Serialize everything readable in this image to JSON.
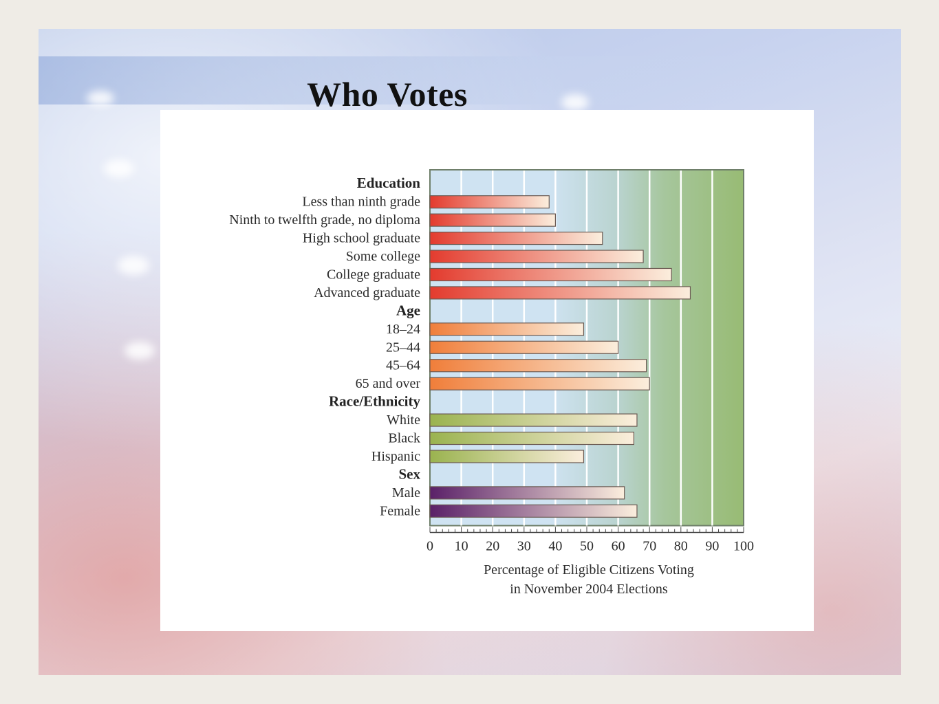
{
  "slide": {
    "title": "Who Votes"
  },
  "chart_data": {
    "type": "bar",
    "orientation": "horizontal",
    "groups": [
      {
        "name": "Education",
        "color": "#e33b2e",
        "items": [
          {
            "label": "Less than ninth grade",
            "value": 38
          },
          {
            "label": "Ninth to twelfth grade, no diploma",
            "value": 40
          },
          {
            "label": "High school graduate",
            "value": 55
          },
          {
            "label": "Some college",
            "value": 68
          },
          {
            "label": "College graduate",
            "value": 77
          },
          {
            "label": "Advanced graduate",
            "value": 83
          }
        ]
      },
      {
        "name": "Age",
        "color": "#f07e3a",
        "items": [
          {
            "label": "18–24",
            "value": 49
          },
          {
            "label": "25–44",
            "value": 60
          },
          {
            "label": "45–64",
            "value": 69
          },
          {
            "label": "65 and over",
            "value": 70
          }
        ]
      },
      {
        "name": "Race/Ethnicity",
        "color": "#9ab34f",
        "items": [
          {
            "label": "White",
            "value": 66
          },
          {
            "label": "Black",
            "value": 65
          },
          {
            "label": "Hispanic",
            "value": 49
          }
        ]
      },
      {
        "name": "Sex",
        "color": "#5a2068",
        "items": [
          {
            "label": "Male",
            "value": 62
          },
          {
            "label": "Female",
            "value": 66
          }
        ]
      }
    ],
    "xlim": [
      0,
      100
    ],
    "xticks": [
      0,
      10,
      20,
      30,
      40,
      50,
      60,
      70,
      80,
      90,
      100
    ],
    "xlabel": [
      "Percentage of Eligible Citizens Voting",
      "in November 2004 Elections"
    ],
    "grid": true
  }
}
